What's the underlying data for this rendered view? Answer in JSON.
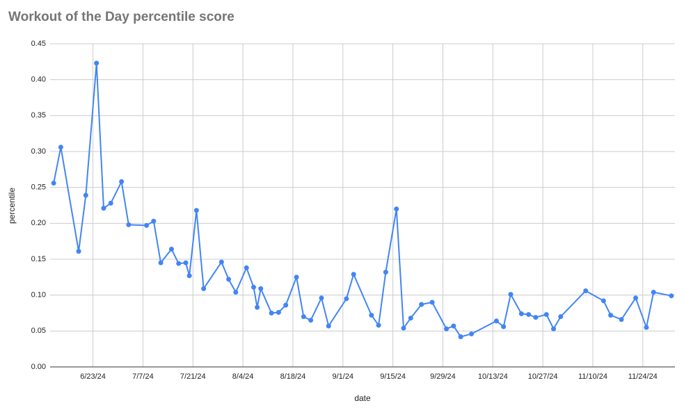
{
  "chart_data": {
    "type": "line",
    "title": "Workout of the Day percentile score",
    "x_label": "date",
    "y_label": "percentile",
    "x": [
      "6/12/24",
      "6/14/24",
      "6/19/24",
      "6/21/24",
      "6/24/24",
      "6/26/24",
      "6/28/24",
      "7/1/24",
      "7/3/24",
      "7/8/24",
      "7/10/24",
      "7/12/24",
      "7/15/24",
      "7/17/24",
      "7/19/24",
      "7/20/24",
      "7/22/24",
      "7/24/24",
      "7/29/24",
      "7/31/24",
      "8/2/24",
      "8/5/24",
      "8/7/24",
      "8/8/24",
      "8/9/24",
      "8/12/24",
      "8/14/24",
      "8/16/24",
      "8/19/24",
      "8/21/24",
      "8/23/24",
      "8/26/24",
      "8/28/24",
      "9/2/24",
      "9/4/24",
      "9/9/24",
      "9/11/24",
      "9/13/24",
      "9/16/24",
      "9/18/24",
      "9/20/24",
      "9/23/24",
      "9/26/24",
      "9/30/24",
      "10/2/24",
      "10/4/24",
      "10/7/24",
      "10/14/24",
      "10/16/24",
      "10/18/24",
      "10/21/24",
      "10/23/24",
      "10/25/24",
      "10/28/24",
      "10/30/24",
      "11/1/24",
      "11/8/24",
      "11/13/24",
      "11/15/24",
      "11/18/24",
      "11/22/24",
      "11/25/24",
      "11/27/24",
      "12/2/24"
    ],
    "series": [
      {
        "name": "percentile",
        "color": "#4285f4",
        "values": [
          0.256,
          0.306,
          0.161,
          0.239,
          0.423,
          0.221,
          0.228,
          0.258,
          0.198,
          0.197,
          0.203,
          0.145,
          0.164,
          0.144,
          0.145,
          0.127,
          0.218,
          0.109,
          0.146,
          0.122,
          0.104,
          0.138,
          0.111,
          0.083,
          0.109,
          0.075,
          0.076,
          0.086,
          0.125,
          0.07,
          0.065,
          0.096,
          0.057,
          0.095,
          0.129,
          0.072,
          0.058,
          0.132,
          0.22,
          0.054,
          0.068,
          0.087,
          0.09,
          0.053,
          0.057,
          0.042,
          0.046,
          0.064,
          0.056,
          0.101,
          0.074,
          0.073,
          0.069,
          0.073,
          0.053,
          0.07,
          0.106,
          0.092,
          0.072,
          0.066,
          0.096,
          0.055,
          0.104,
          0.099
        ]
      }
    ],
    "xlim": [
      "6/11/24",
      "12/3/24"
    ],
    "xticks": [
      "6/23/24",
      "7/7/24",
      "7/21/24",
      "8/4/24",
      "8/18/24",
      "9/1/24",
      "9/15/24",
      "9/29/24",
      "10/13/24",
      "10/27/24",
      "11/10/24",
      "11/24/24"
    ],
    "ylim": [
      0,
      0.45
    ],
    "yticks": [
      {
        "value": 0,
        "label": "0.00"
      },
      0.05,
      {
        "value": 0.1,
        "label": "0.10"
      },
      0.15,
      {
        "value": 0.2,
        "label": "0.20"
      },
      0.25,
      {
        "value": 0.3,
        "label": "0.30"
      },
      0.35,
      {
        "value": 0.4,
        "label": "0.40"
      },
      0.45
    ],
    "grid": true
  }
}
